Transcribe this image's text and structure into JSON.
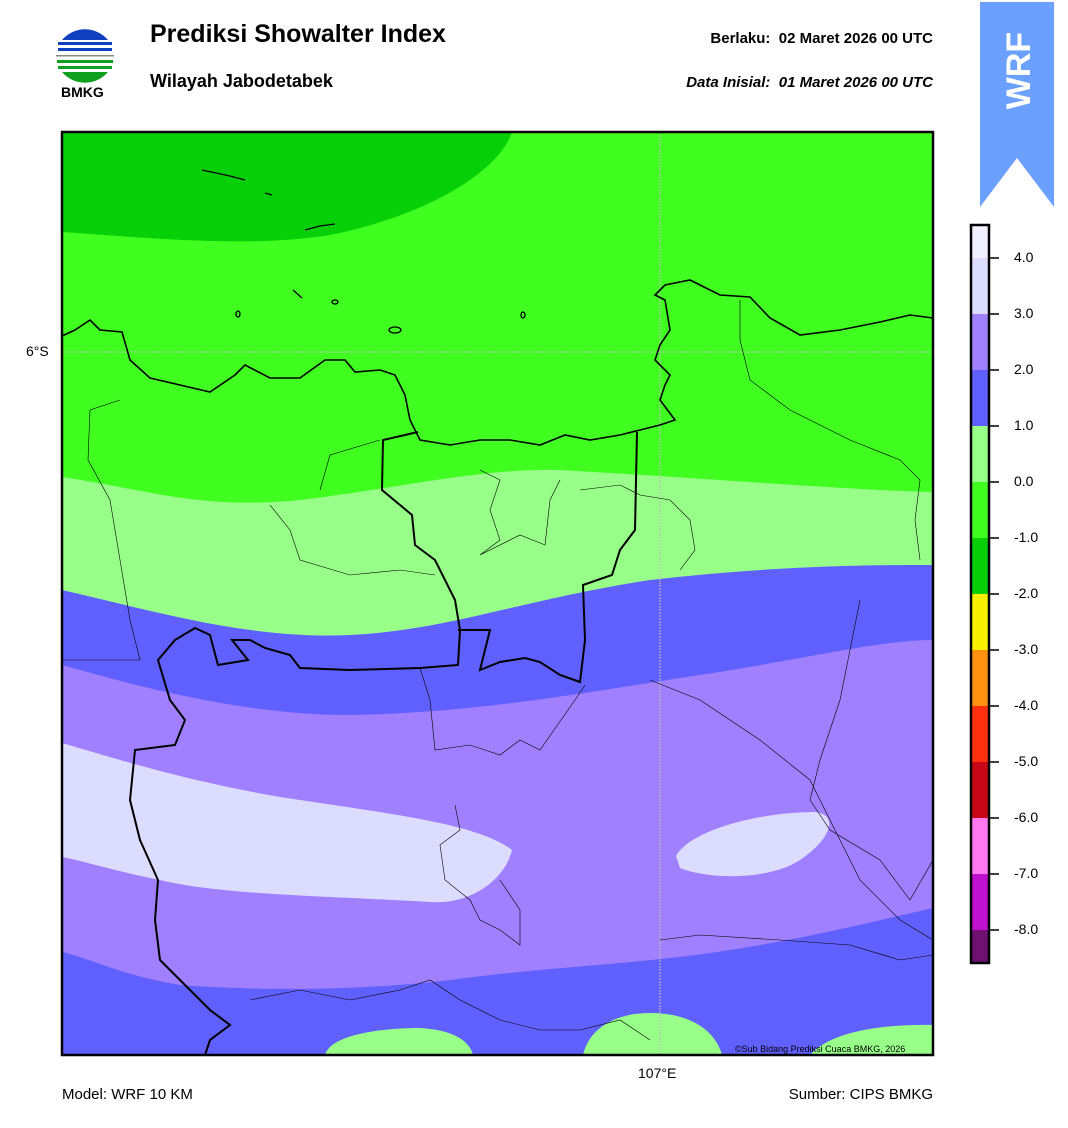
{
  "header": {
    "title": "Prediksi Showalter Index",
    "subtitle": "Wilayah Jabodetabek",
    "valid": "Berlaku:  02 Maret 2026 00 UTC",
    "initial": "Data Inisial:  01 Maret 2026 00 UTC",
    "logo_text": "BMKG",
    "badge": "WRF",
    "badge_color": "#6ca0ff"
  },
  "map": {
    "lat_label": "6°S",
    "lon_label": "107°E",
    "copyright": "©Sub Bidang Prediksi Cuaca BMKG, 2026"
  },
  "colorbar": {
    "ticks": [
      "4.0",
      "3.0",
      "2.0",
      "1.0",
      "0.0",
      "-1.0",
      "-2.0",
      "-3.0",
      "-4.0",
      "-5.0",
      "-6.0",
      "-7.0",
      "-8.0"
    ],
    "colors": [
      "#f0f0ff",
      "#dcdcff",
      "#a080ff",
      "#6060ff",
      "#98ff88",
      "#40ff20",
      "#08d008",
      "#f8f000",
      "#ff9010",
      "#ff3010",
      "#c80818",
      "#ff78f0",
      "#c010d0",
      "#701070"
    ]
  },
  "footer": {
    "model": "Model: WRF 10 KM",
    "source": "Sumber: CIPS BMKG"
  }
}
